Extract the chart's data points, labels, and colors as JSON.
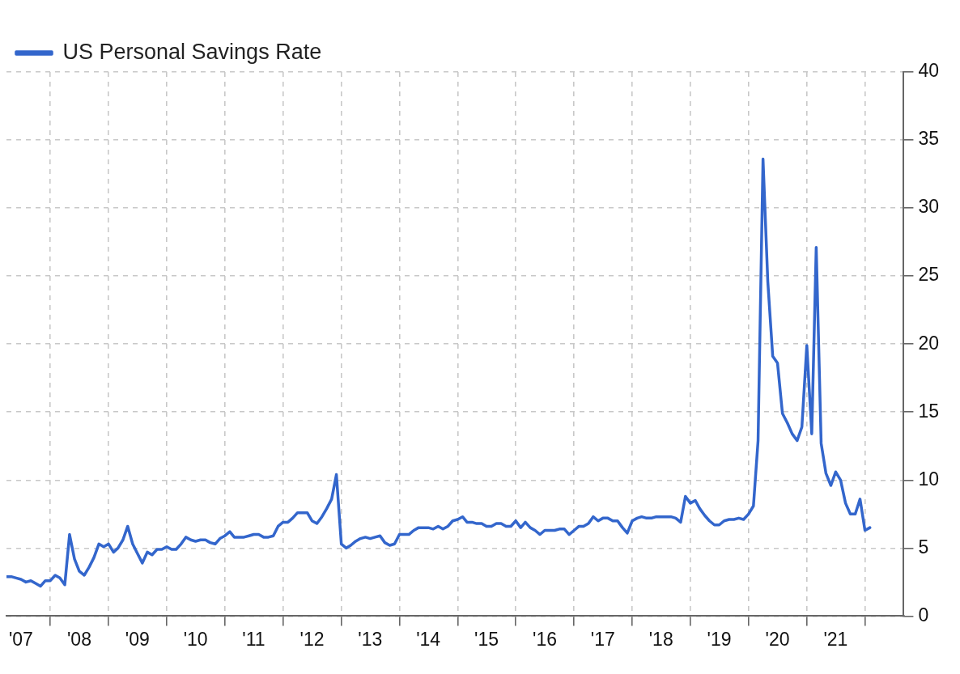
{
  "chart_data": {
    "type": "line",
    "legend": "top left",
    "grid": true,
    "xlim": [
      "2007-04",
      "2022-09"
    ],
    "xticks": [
      {
        "value": "2007-07",
        "label": "'07"
      },
      {
        "value": "2008-01",
        "label": null
      },
      {
        "value": "2008-07",
        "label": "'08"
      },
      {
        "value": "2009-01",
        "label": null
      },
      {
        "value": "2009-07",
        "label": "'09"
      },
      {
        "value": "2010-01",
        "label": null
      },
      {
        "value": "2010-07",
        "label": "'10"
      },
      {
        "value": "2011-01",
        "label": null
      },
      {
        "value": "2011-07",
        "label": "'11"
      },
      {
        "value": "2012-01",
        "label": null
      },
      {
        "value": "2012-07",
        "label": "'12"
      },
      {
        "value": "2013-01",
        "label": null
      },
      {
        "value": "2013-07",
        "label": "'13"
      },
      {
        "value": "2014-01",
        "label": null
      },
      {
        "value": "2014-07",
        "label": "'14"
      },
      {
        "value": "2015-01",
        "label": null
      },
      {
        "value": "2015-07",
        "label": "'15"
      },
      {
        "value": "2016-01",
        "label": null
      },
      {
        "value": "2016-07",
        "label": "'16"
      },
      {
        "value": "2017-01",
        "label": null
      },
      {
        "value": "2017-07",
        "label": "'17"
      },
      {
        "value": "2018-01",
        "label": null
      },
      {
        "value": "2018-07",
        "label": "'18"
      },
      {
        "value": "2019-01",
        "label": null
      },
      {
        "value": "2019-07",
        "label": "'19"
      },
      {
        "value": "2020-01",
        "label": null
      },
      {
        "value": "2020-07",
        "label": "'20"
      },
      {
        "value": "2021-01",
        "label": null
      },
      {
        "value": "2021-07",
        "label": "'21"
      },
      {
        "value": "2022-01",
        "label": null
      }
    ],
    "ylim": [
      0,
      40
    ],
    "yticks": [
      0,
      5,
      10,
      15,
      20,
      25,
      30,
      35,
      40
    ],
    "x": [
      "2007-04",
      "2007-05",
      "2007-06",
      "2007-07",
      "2007-08",
      "2007-09",
      "2007-10",
      "2007-11",
      "2007-12",
      "2008-01",
      "2008-02",
      "2008-03",
      "2008-04",
      "2008-05",
      "2008-06",
      "2008-07",
      "2008-08",
      "2008-09",
      "2008-10",
      "2008-11",
      "2008-12",
      "2009-01",
      "2009-02",
      "2009-03",
      "2009-04",
      "2009-05",
      "2009-06",
      "2009-07",
      "2009-08",
      "2009-09",
      "2009-10",
      "2009-11",
      "2009-12",
      "2010-01",
      "2010-02",
      "2010-03",
      "2010-04",
      "2010-05",
      "2010-06",
      "2010-07",
      "2010-08",
      "2010-09",
      "2010-10",
      "2010-11",
      "2010-12",
      "2011-01",
      "2011-02",
      "2011-03",
      "2011-04",
      "2011-05",
      "2011-06",
      "2011-07",
      "2011-08",
      "2011-09",
      "2011-10",
      "2011-11",
      "2011-12",
      "2012-01",
      "2012-02",
      "2012-03",
      "2012-04",
      "2012-05",
      "2012-06",
      "2012-07",
      "2012-08",
      "2012-09",
      "2012-10",
      "2012-11",
      "2012-12",
      "2013-01",
      "2013-02",
      "2013-03",
      "2013-04",
      "2013-05",
      "2013-06",
      "2013-07",
      "2013-08",
      "2013-09",
      "2013-10",
      "2013-11",
      "2013-12",
      "2014-01",
      "2014-02",
      "2014-03",
      "2014-04",
      "2014-05",
      "2014-06",
      "2014-07",
      "2014-08",
      "2014-09",
      "2014-10",
      "2014-11",
      "2014-12",
      "2015-01",
      "2015-02",
      "2015-03",
      "2015-04",
      "2015-05",
      "2015-06",
      "2015-07",
      "2015-08",
      "2015-09",
      "2015-10",
      "2015-11",
      "2015-12",
      "2016-01",
      "2016-02",
      "2016-03",
      "2016-04",
      "2016-05",
      "2016-06",
      "2016-07",
      "2016-08",
      "2016-09",
      "2016-10",
      "2016-11",
      "2016-12",
      "2017-01",
      "2017-02",
      "2017-03",
      "2017-04",
      "2017-05",
      "2017-06",
      "2017-07",
      "2017-08",
      "2017-09",
      "2017-10",
      "2017-11",
      "2017-12",
      "2018-01",
      "2018-02",
      "2018-03",
      "2018-04",
      "2018-05",
      "2018-06",
      "2018-07",
      "2018-08",
      "2018-09",
      "2018-10",
      "2018-11",
      "2018-12",
      "2019-01",
      "2019-02",
      "2019-03",
      "2019-04",
      "2019-05",
      "2019-06",
      "2019-07",
      "2019-08",
      "2019-09",
      "2019-10",
      "2019-11",
      "2019-12",
      "2020-01",
      "2020-02",
      "2020-03",
      "2020-04",
      "2020-05",
      "2020-06",
      "2020-07",
      "2020-08",
      "2020-09",
      "2020-10",
      "2020-11",
      "2020-12",
      "2021-01",
      "2021-02",
      "2021-03",
      "2021-04",
      "2021-05",
      "2021-06",
      "2021-07",
      "2021-08",
      "2021-09",
      "2021-10",
      "2021-11",
      "2021-12",
      "2022-01",
      "2022-02"
    ],
    "series": [
      {
        "name": "US Personal Savings Rate",
        "color": "#3366cc",
        "values": [
          2.9,
          2.9,
          2.8,
          2.7,
          2.5,
          2.6,
          2.4,
          2.2,
          2.6,
          2.6,
          3.0,
          2.8,
          2.3,
          6.0,
          4.2,
          3.3,
          3.0,
          3.6,
          4.3,
          5.3,
          5.1,
          5.3,
          4.7,
          5.0,
          5.6,
          6.6,
          5.3,
          4.6,
          3.9,
          4.7,
          4.5,
          4.9,
          4.9,
          5.1,
          4.9,
          4.9,
          5.3,
          5.8,
          5.6,
          5.5,
          5.6,
          5.6,
          5.4,
          5.3,
          5.7,
          5.9,
          6.2,
          5.8,
          5.8,
          5.8,
          5.9,
          6.0,
          6.0,
          5.8,
          5.8,
          5.9,
          6.6,
          6.9,
          6.9,
          7.2,
          7.6,
          7.6,
          7.6,
          7.0,
          6.8,
          7.3,
          7.9,
          8.6,
          10.4,
          5.3,
          5.0,
          5.2,
          5.5,
          5.7,
          5.8,
          5.7,
          5.8,
          5.9,
          5.4,
          5.2,
          5.3,
          6.0,
          6.0,
          6.0,
          6.3,
          6.5,
          6.5,
          6.5,
          6.4,
          6.6,
          6.4,
          6.6,
          7.0,
          7.1,
          7.3,
          6.9,
          6.9,
          6.8,
          6.8,
          6.6,
          6.6,
          6.8,
          6.8,
          6.6,
          6.6,
          7.0,
          6.5,
          6.9,
          6.5,
          6.3,
          6.0,
          6.3,
          6.3,
          6.3,
          6.4,
          6.4,
          6.0,
          6.3,
          6.6,
          6.6,
          6.8,
          7.3,
          7.0,
          7.2,
          7.2,
          7.0,
          7.0,
          6.5,
          6.1,
          7.0,
          7.2,
          7.3,
          7.2,
          7.2,
          7.3,
          7.3,
          7.3,
          7.3,
          7.2,
          6.9,
          8.8,
          8.3,
          8.5,
          7.9,
          7.4,
          7.0,
          6.7,
          6.7,
          7.0,
          7.1,
          7.1,
          7.2,
          7.1,
          7.5,
          8.1,
          12.9,
          33.6,
          24.6,
          19.1,
          18.6,
          14.9,
          14.2,
          13.4,
          12.9,
          13.9,
          19.9,
          13.4,
          27.1,
          12.7,
          10.5,
          9.6,
          10.6,
          10.0,
          8.3,
          7.5,
          7.5,
          8.6,
          6.3,
          6.5
        ]
      }
    ]
  }
}
